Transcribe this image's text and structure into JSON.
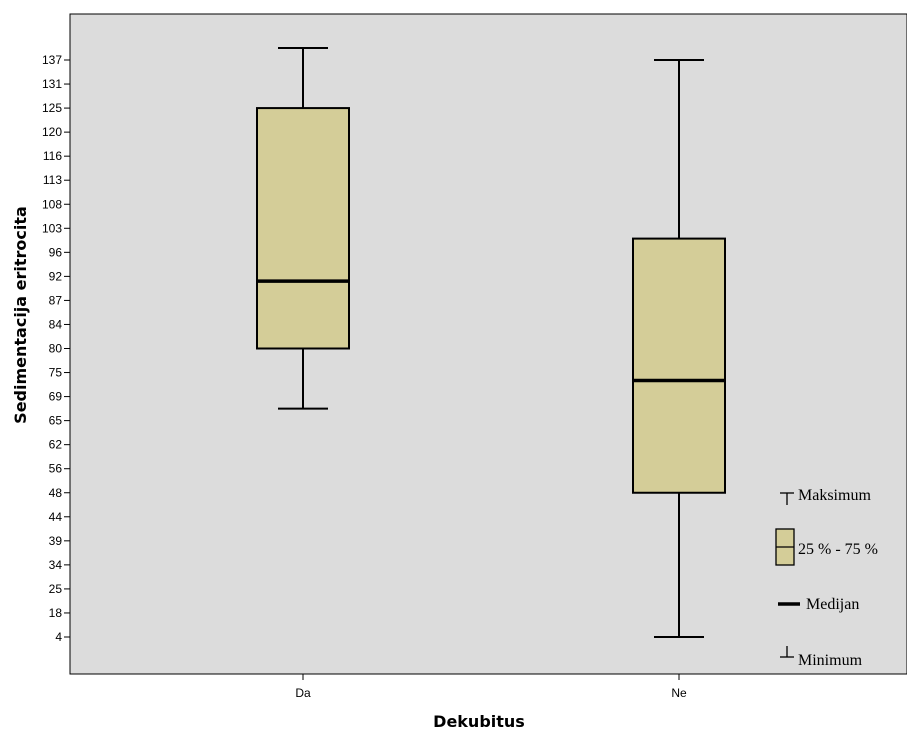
{
  "chart_data": {
    "type": "boxplot",
    "title": "",
    "xlabel": "Dekubitus",
    "ylabel": "Sedimentacija eritrocita",
    "y_tick_labels": [
      "4",
      "18",
      "25",
      "34",
      "39",
      "44",
      "48",
      "56",
      "62",
      "65",
      "69",
      "75",
      "80",
      "84",
      "87",
      "92",
      "96",
      "103",
      "108",
      "113",
      "116",
      "120",
      "125",
      "131",
      "137"
    ],
    "categories": [
      "Da",
      "Ne"
    ],
    "boxes": [
      {
        "category": "Da",
        "min": 67,
        "q1": 80,
        "median": 91,
        "q3": 125,
        "max": 140
      },
      {
        "category": "Ne",
        "min": 4,
        "q1": 48,
        "median": 73,
        "q3": 100,
        "max": 137
      }
    ],
    "grid": false,
    "legend_position": "right",
    "legend": [
      {
        "key": "max",
        "label": "Maksimum"
      },
      {
        "key": "box",
        "label": "25 % - 75 %"
      },
      {
        "key": "median",
        "label": "Medijan"
      },
      {
        "key": "min",
        "label": "Minimum"
      }
    ],
    "colors": {
      "background": "#dcdcdc",
      "box_fill": "#d4cd98",
      "stroke": "#000000"
    }
  }
}
